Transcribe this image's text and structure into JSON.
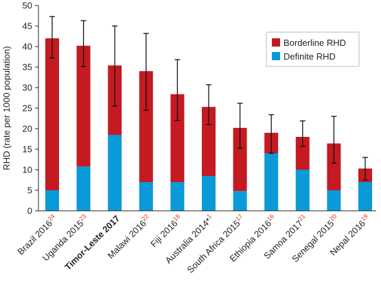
{
  "chart_data": {
    "type": "bar",
    "stacked": true,
    "ylabel": "RHD (rate per 1000 population)",
    "xlabel": "",
    "ylim": [
      0,
      50
    ],
    "yticks": [
      0,
      5,
      10,
      15,
      20,
      25,
      30,
      35,
      40,
      45,
      50
    ],
    "grid": false,
    "legend_position": "top-right",
    "categories": [
      {
        "label": "Brazil 2016",
        "ref": "24",
        "bold": false
      },
      {
        "label": "Uganda 2015",
        "ref": "23",
        "bold": false
      },
      {
        "label": "Timor-Leste 2017",
        "ref": "",
        "bold": true
      },
      {
        "label": "Malawi 2016",
        "ref": "22",
        "bold": false
      },
      {
        "label": "Fiji 2016",
        "ref": "18",
        "bold": false
      },
      {
        "label": "Australia 2014*",
        "ref": "1",
        "bold": false
      },
      {
        "label": "South Africa 2015",
        "ref": "17",
        "bold": false
      },
      {
        "label": "Ethiopia 2016",
        "ref": "16",
        "bold": false
      },
      {
        "label": "Samoa 2017",
        "ref": "21",
        "bold": false
      },
      {
        "label": "Senegal 2015",
        "ref": "20",
        "bold": false
      },
      {
        "label": "Nepal 2016",
        "ref": "19",
        "bold": false
      }
    ],
    "series": [
      {
        "name": "Definite RHD",
        "color": "#0a9ad8",
        "values": [
          5,
          10.8,
          18.5,
          7,
          7,
          8.5,
          4.8,
          14,
          10,
          5,
          7
        ]
      },
      {
        "name": "Borderline RHD",
        "color": "#c41a22",
        "values": [
          37,
          29.4,
          16.9,
          27,
          21.4,
          16.8,
          15.4,
          5,
          8,
          11.4,
          3.3
        ]
      }
    ],
    "totals": [
      42,
      40.2,
      35.4,
      34,
      28.4,
      25.3,
      20.2,
      19,
      18,
      16.4,
      10.3
    ],
    "error_bars": [
      {
        "low": 37.2,
        "high": 47.3
      },
      {
        "low": 35.1,
        "high": 46.3
      },
      {
        "low": 25.5,
        "high": 45
      },
      {
        "low": 24.5,
        "high": 43.2
      },
      {
        "low": 22,
        "high": 36.8
      },
      {
        "low": 21,
        "high": 30.7
      },
      {
        "low": 15.3,
        "high": 26.2
      },
      {
        "low": 14,
        "high": 23.4
      },
      {
        "low": 15.7,
        "high": 21.9
      },
      {
        "low": 11.6,
        "high": 23
      },
      {
        "low": 7.5,
        "high": 13
      }
    ],
    "legend": [
      "Borderline RHD",
      "Definite RHD"
    ]
  }
}
